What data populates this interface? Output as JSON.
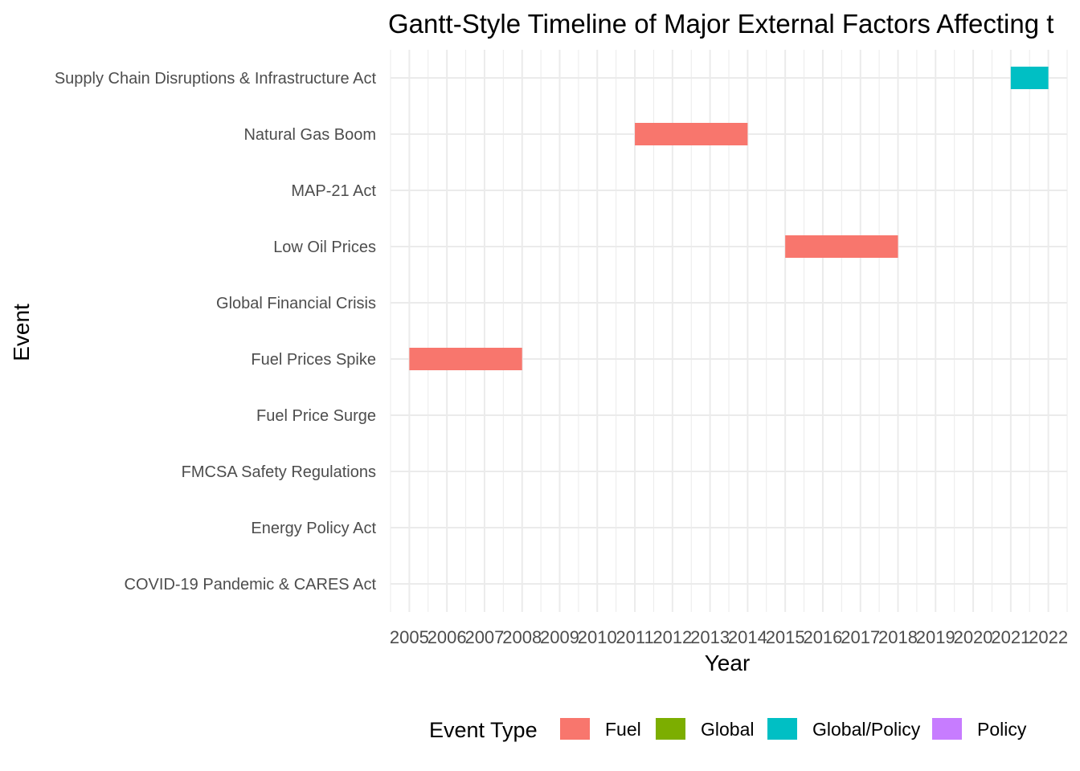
{
  "chart_data": {
    "type": "gantt",
    "title": "Gantt-Style Timeline of Major External Factors Affecting t",
    "xlabel": "Year",
    "ylabel": "Event",
    "xlim": [
      2004.5,
      2022.5
    ],
    "x_ticks": [
      "2005",
      "2006",
      "2007",
      "2008",
      "2009",
      "2010",
      "2011",
      "2012",
      "2013",
      "2014",
      "2015",
      "2016",
      "2017",
      "2018",
      "2019",
      "2020",
      "2021",
      "2022"
    ],
    "categories": [
      "COVID-19 Pandemic & CARES Act",
      "Energy Policy Act",
      "FMCSA Safety Regulations",
      "Fuel Price Surge",
      "Fuel Prices Spike",
      "Global Financial Crisis",
      "Low Oil Prices",
      "MAP-21 Act",
      "Natural Gas Boom",
      "Supply Chain Disruptions & Infrastructure Act"
    ],
    "bars": [
      {
        "event": "Fuel Prices Spike",
        "start": 2005,
        "end": 2008,
        "type": "Fuel"
      },
      {
        "event": "Natural Gas Boom",
        "start": 2011,
        "end": 2014,
        "type": "Fuel"
      },
      {
        "event": "Low Oil Prices",
        "start": 2015,
        "end": 2018,
        "type": "Fuel"
      },
      {
        "event": "Supply Chain Disruptions & Infrastructure Act",
        "start": 2021,
        "end": 2022,
        "type": "Global/Policy"
      }
    ],
    "legend": {
      "title": "Event Type",
      "position": "bottom",
      "items": [
        {
          "label": "Fuel",
          "color": "#F8766D"
        },
        {
          "label": "Global",
          "color": "#7CAE00"
        },
        {
          "label": "Global/Policy",
          "color": "#00BFC4"
        },
        {
          "label": "Policy",
          "color": "#C77CFF"
        }
      ]
    },
    "grid": true
  }
}
